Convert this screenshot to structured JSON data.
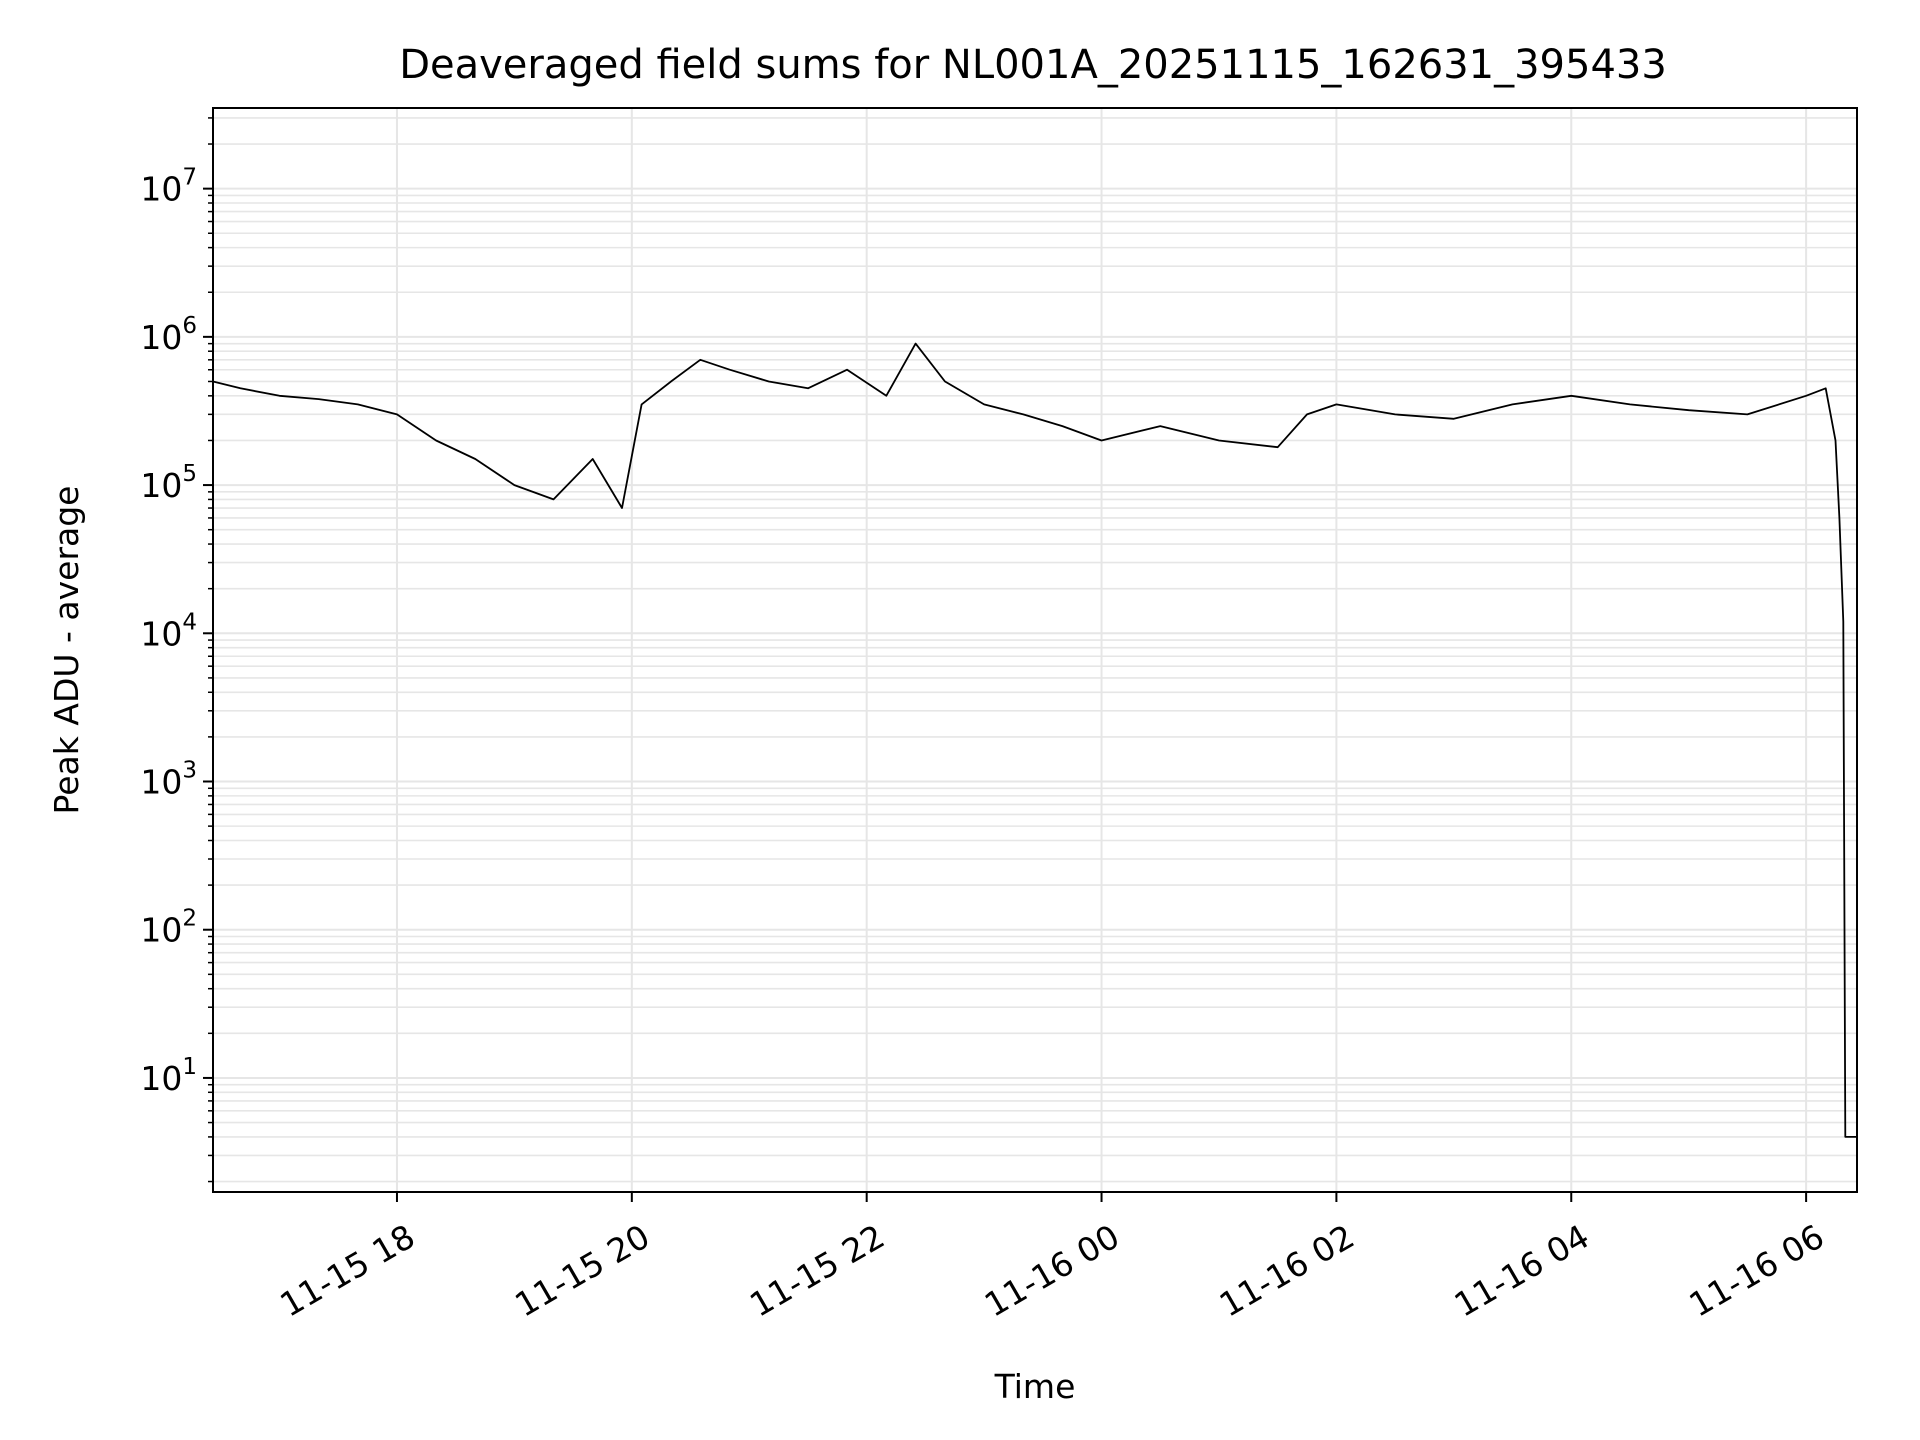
{
  "chart_data": {
    "type": "line",
    "title": "Deaveraged field sums for NL001A_20251115_162631_395433",
    "xlabel": "Time",
    "ylabel": "Peak ADU - average",
    "yscale": "log",
    "xlim": [
      "2025-11-15 16:26",
      "2025-11-16 06:26"
    ],
    "ylim": [
      1.7,
      35000000
    ],
    "grid": true,
    "line_color": "#000000",
    "grid_color": "#e6e6e6",
    "x_ticks": [
      {
        "value": "2025-11-15 18:00",
        "label": "11-15 18"
      },
      {
        "value": "2025-11-15 20:00",
        "label": "11-15 20"
      },
      {
        "value": "2025-11-15 22:00",
        "label": "11-15 22"
      },
      {
        "value": "2025-11-16 00:00",
        "label": "11-16 00"
      },
      {
        "value": "2025-11-16 02:00",
        "label": "11-16 02"
      },
      {
        "value": "2025-11-16 04:00",
        "label": "11-16 04"
      },
      {
        "value": "2025-11-16 06:00",
        "label": "11-16 06"
      }
    ],
    "y_ticks": [
      {
        "value": 10,
        "base": "10",
        "exp": "1"
      },
      {
        "value": 100,
        "base": "10",
        "exp": "2"
      },
      {
        "value": 1000,
        "base": "10",
        "exp": "3"
      },
      {
        "value": 10000,
        "base": "10",
        "exp": "4"
      },
      {
        "value": 100000,
        "base": "10",
        "exp": "5"
      },
      {
        "value": 1000000,
        "base": "10",
        "exp": "6"
      },
      {
        "value": 10000000,
        "base": "10",
        "exp": "7"
      }
    ],
    "series": [
      {
        "x": [
          "2025-11-15 16:26",
          "2025-11-15 16:40",
          "2025-11-15 17:00",
          "2025-11-15 17:20",
          "2025-11-15 17:40",
          "2025-11-15 18:00",
          "2025-11-15 18:20",
          "2025-11-15 18:40",
          "2025-11-15 19:00",
          "2025-11-15 19:20",
          "2025-11-15 19:40",
          "2025-11-15 19:55",
          "2025-11-15 20:05",
          "2025-11-15 20:20",
          "2025-11-15 20:35",
          "2025-11-15 20:50",
          "2025-11-15 21:10",
          "2025-11-15 21:30",
          "2025-11-15 21:50",
          "2025-11-15 22:10",
          "2025-11-15 22:25",
          "2025-11-15 22:40",
          "2025-11-15 23:00",
          "2025-11-15 23:20",
          "2025-11-15 23:40",
          "2025-11-16 00:00",
          "2025-11-16 00:30",
          "2025-11-16 01:00",
          "2025-11-16 01:30",
          "2025-11-16 01:45",
          "2025-11-16 02:00",
          "2025-11-16 02:30",
          "2025-11-16 03:00",
          "2025-11-16 03:30",
          "2025-11-16 04:00",
          "2025-11-16 04:30",
          "2025-11-16 05:00",
          "2025-11-16 05:30",
          "2025-11-16 06:00",
          "2025-11-16 06:10",
          "2025-11-16 06:15",
          "2025-11-16 06:17",
          "2025-11-16 06:19",
          "2025-11-16 06:20",
          "2025-11-16 06:26"
        ],
        "y": [
          500000,
          450000,
          400000,
          380000,
          350000,
          300000,
          200000,
          150000,
          100000,
          80000,
          150000,
          70000,
          350000,
          500000,
          700000,
          600000,
          500000,
          450000,
          600000,
          400000,
          900000,
          500000,
          350000,
          300000,
          250000,
          200000,
          250000,
          200000,
          180000,
          300000,
          350000,
          300000,
          280000,
          350000,
          400000,
          350000,
          320000,
          300000,
          400000,
          450000,
          200000,
          60000,
          12000,
          4,
          4
        ]
      }
    ]
  }
}
